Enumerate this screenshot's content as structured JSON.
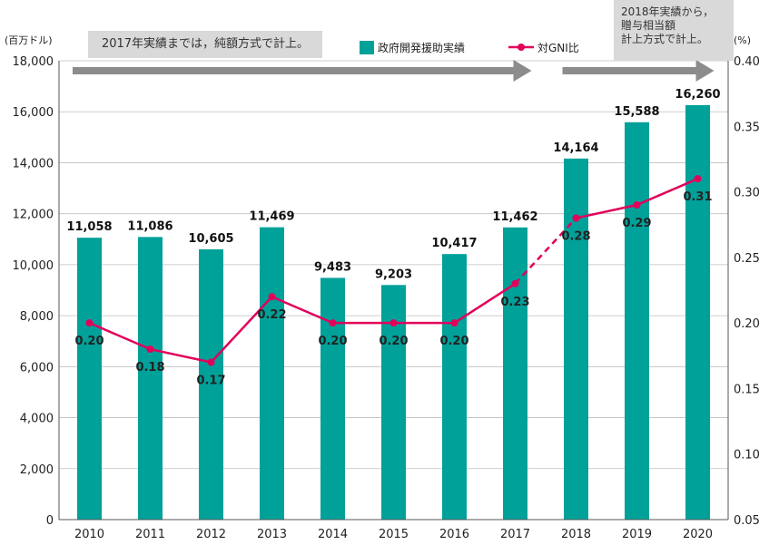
{
  "chart_data": {
    "type": "bar+line",
    "categories": [
      "2010",
      "2011",
      "2012",
      "2013",
      "2014",
      "2015",
      "2016",
      "2017",
      "2018",
      "2019",
      "2020"
    ],
    "series": [
      {
        "name": "政府開発援助実績",
        "kind": "bar",
        "axis": "left",
        "color": "#00a199",
        "values": [
          11058,
          11086,
          10605,
          11469,
          9483,
          9203,
          10417,
          11462,
          14164,
          15588,
          16260
        ],
        "labels": [
          "11,058",
          "11,086",
          "10,605",
          "11,469",
          "9,483",
          "9,203",
          "10,417",
          "11,462",
          "14,164",
          "15,588",
          "16,260"
        ]
      },
      {
        "name": "対GNI比",
        "kind": "line",
        "axis": "right",
        "color": "#e2005a",
        "values": [
          0.2,
          0.18,
          0.17,
          0.22,
          0.2,
          0.2,
          0.2,
          0.23,
          0.28,
          0.29,
          0.31
        ],
        "labels": [
          "0.20",
          "0.18",
          "0.17",
          "0.22",
          "0.20",
          "0.20",
          "0.20",
          "0.23",
          "0.28",
          "0.29",
          "0.31"
        ],
        "dashed_segment": [
          "2017",
          "2018"
        ]
      }
    ],
    "y_left": {
      "unit_label": "(百万ドル)",
      "range": [
        0,
        18000
      ],
      "ticks": [
        "0",
        "2,000",
        "4,000",
        "6,000",
        "8,000",
        "10,000",
        "12,000",
        "14,000",
        "16,000",
        "18,000"
      ]
    },
    "y_right": {
      "unit_label": "(%)",
      "range": [
        0.05,
        0.4
      ],
      "ticks": [
        "0.05",
        "0.10",
        "0.15",
        "0.20",
        "0.25",
        "0.30",
        "0.35",
        "0.40"
      ]
    },
    "grid": true,
    "legend_position": "top-center",
    "annotations": {
      "left": "2017年実績までは，純額方式で計上。",
      "right": "2018年実績から，\n贈与相当額\n計上方式で計上。"
    },
    "colors": {
      "bar": "#00a199",
      "line": "#e2005a",
      "arrow": "#8c8c8c",
      "note_bg": "#d9d9d9"
    }
  }
}
